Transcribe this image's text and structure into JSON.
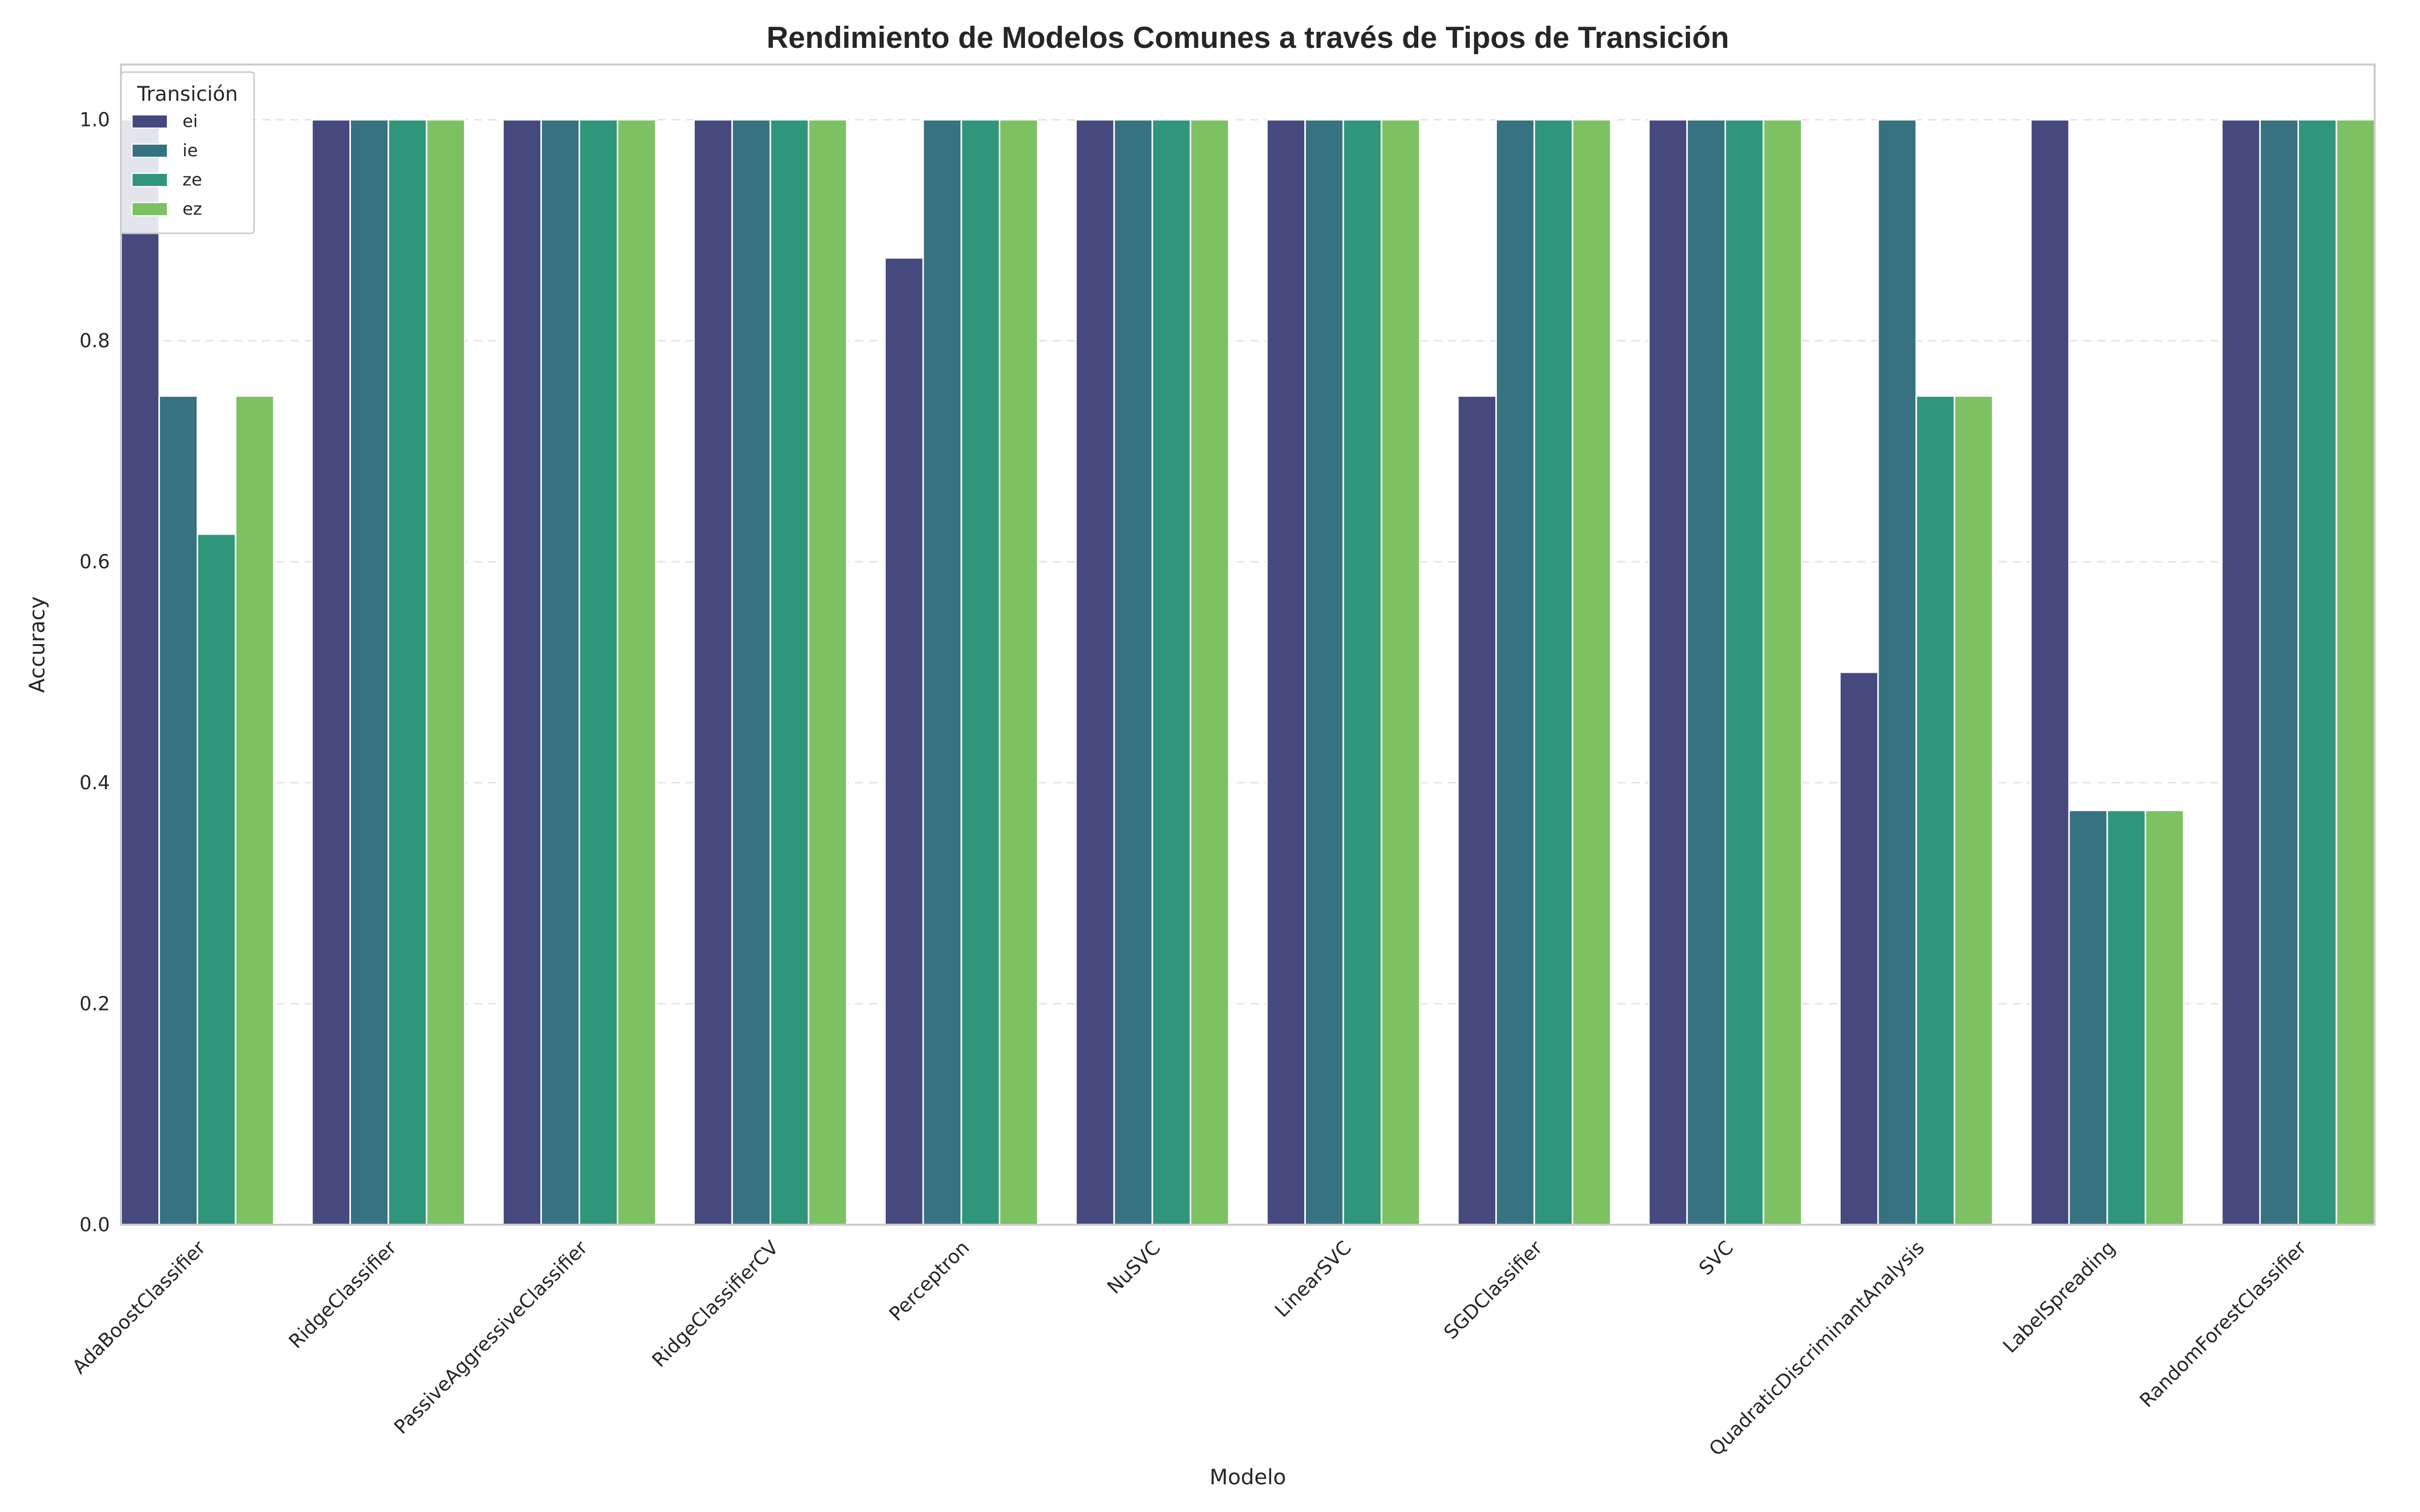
{
  "chart_data": {
    "type": "bar",
    "title": "Rendimiento de Modelos Comunes a través de Tipos de Transición",
    "xlabel": "Modelo",
    "ylabel": "Accuracy",
    "ylim": [
      0,
      1.05
    ],
    "yticks": [
      "0.0",
      "0.2",
      "0.4",
      "0.6",
      "0.8",
      "1.0"
    ],
    "grid": "horizontal-dashed",
    "legend": {
      "title": "Transición",
      "placement": "top-left"
    },
    "categories": [
      "AdaBoostClassifier",
      "RidgeClassifier",
      "PassiveAggressiveClassifier",
      "RidgeClassifierCV",
      "Perceptron",
      "NuSVC",
      "LinearSVC",
      "SGDClassifier",
      "SVC",
      "QuadraticDiscriminantAnalysis",
      "LabelSpreading",
      "RandomForestClassifier"
    ],
    "series": [
      {
        "name": "ei",
        "color": "#46497e",
        "values": [
          1.0,
          1.0,
          1.0,
          1.0,
          0.875,
          1.0,
          1.0,
          0.75,
          1.0,
          0.5,
          1.0,
          1.0
        ]
      },
      {
        "name": "ie",
        "color": "#36727f",
        "values": [
          0.75,
          1.0,
          1.0,
          1.0,
          1.0,
          1.0,
          1.0,
          1.0,
          1.0,
          1.0,
          0.375,
          1.0
        ]
      },
      {
        "name": "ze",
        "color": "#2f967a",
        "values": [
          0.625,
          1.0,
          1.0,
          1.0,
          1.0,
          1.0,
          1.0,
          1.0,
          1.0,
          0.75,
          0.375,
          1.0
        ]
      },
      {
        "name": "ez",
        "color": "#7cc162",
        "values": [
          0.75,
          1.0,
          1.0,
          1.0,
          1.0,
          1.0,
          1.0,
          1.0,
          1.0,
          0.75,
          0.375,
          1.0
        ]
      }
    ]
  }
}
